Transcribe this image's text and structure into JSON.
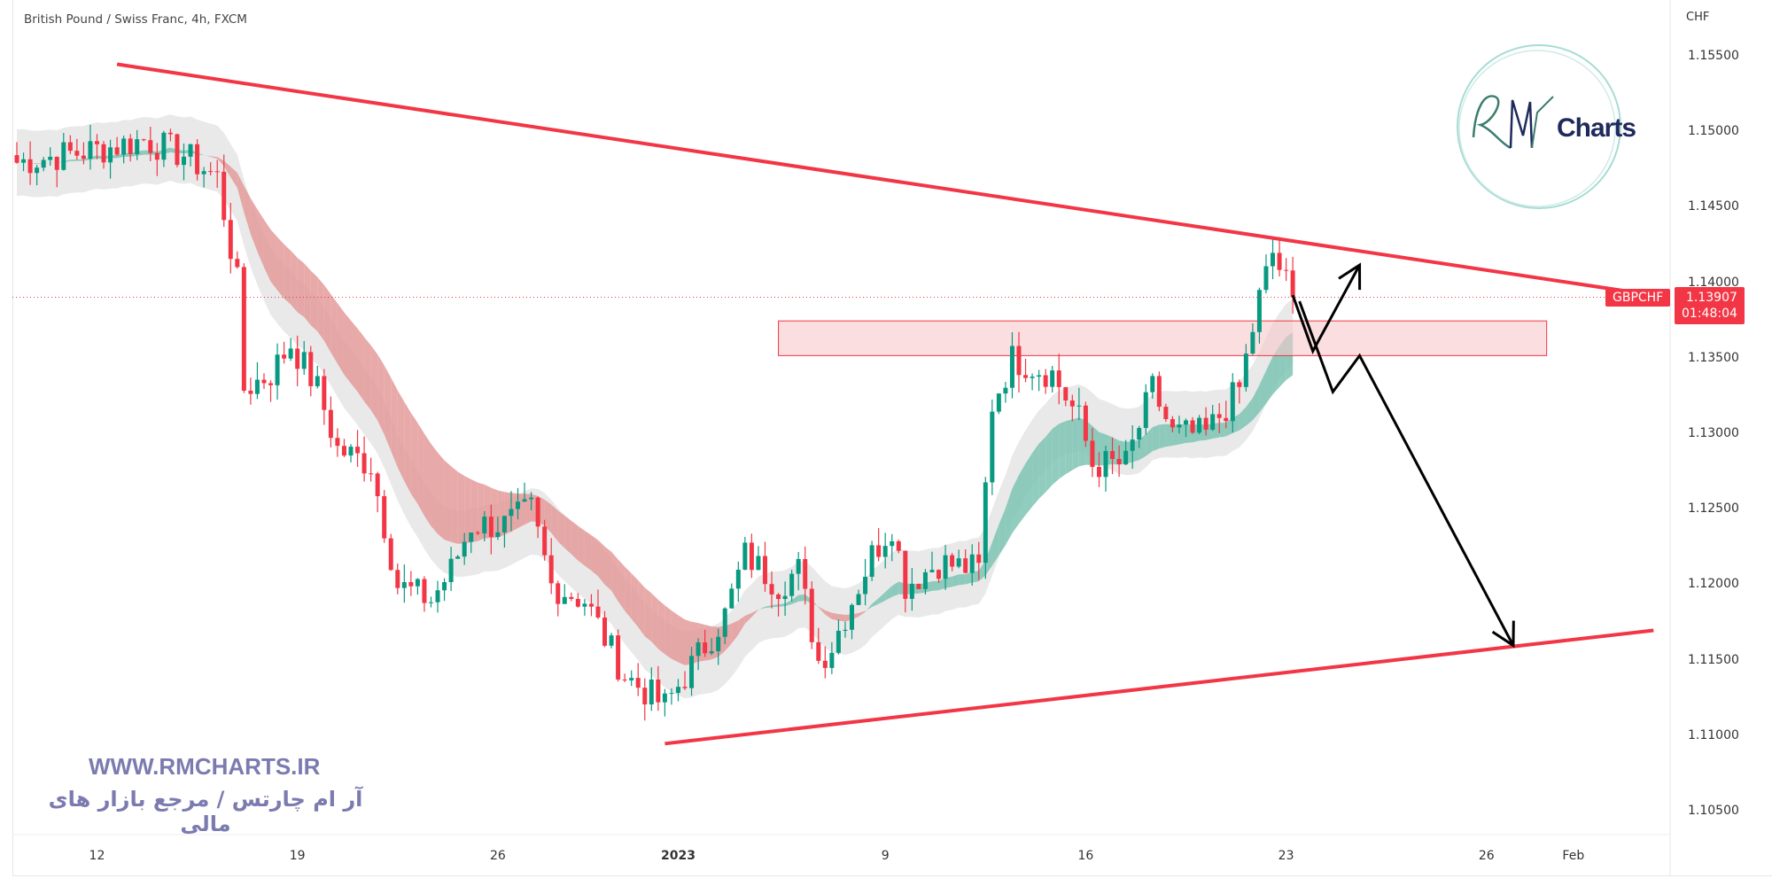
{
  "header": {
    "title": "British Pound / Swiss Franc, 4h, FXCM"
  },
  "price_axis": {
    "currency": "CHF"
  },
  "last_price": {
    "symbol": "GBPCHF",
    "price": "1.13907",
    "countdown": "01:48:04",
    "color": "#f23645"
  },
  "watermark": {
    "url": "WWW.RMCHARTS.IR",
    "tagline": "آر ام چارتس / مرجع بازار های مالی",
    "logo_text": "Charts",
    "logo_mark": "RM"
  },
  "colors": {
    "up": "#089981",
    "down": "#f23645",
    "trendline": "#f23645",
    "zone": "#f8c8cc"
  },
  "chart_data": {
    "type": "candlestick",
    "title": "British Pound / Swiss Franc, 4h, FXCM",
    "ylabel": "CHF",
    "ylim": [
      1.102,
      1.158
    ],
    "y_ticks": [
      "1.15500",
      "1.15000",
      "1.14500",
      "1.14000",
      "1.13500",
      "1.13000",
      "1.12500",
      "1.12000",
      "1.11500",
      "1.11000",
      "1.10500"
    ],
    "x_ticks": [
      {
        "label": "12",
        "bar": 12
      },
      {
        "label": "19",
        "bar": 42
      },
      {
        "label": "26",
        "bar": 72
      },
      {
        "label": "2023",
        "bold": true,
        "bar": 99
      },
      {
        "label": "9",
        "bar": 130
      },
      {
        "label": "16",
        "bar": 160
      },
      {
        "label": "23",
        "bar": 190
      },
      {
        "label": "26",
        "bar": 220
      },
      {
        "label": "Feb",
        "bar": 233
      }
    ],
    "bar_count": 192,
    "close_path": [
      [
        0,
        1.148
      ],
      [
        14,
        1.149
      ],
      [
        19,
        1.1495
      ],
      [
        25,
        1.1485
      ],
      [
        30,
        1.147
      ],
      [
        33,
        1.14
      ],
      [
        34,
        1.133
      ],
      [
        38,
        1.134
      ],
      [
        41,
        1.136
      ],
      [
        45,
        1.133
      ],
      [
        48,
        1.129
      ],
      [
        53,
        1.128
      ],
      [
        57,
        1.12
      ],
      [
        62,
        1.119
      ],
      [
        65,
        1.121
      ],
      [
        68,
        1.124
      ],
      [
        73,
        1.124
      ],
      [
        77,
        1.125
      ],
      [
        80,
        1.12
      ],
      [
        85,
        1.119
      ],
      [
        91,
        1.114
      ],
      [
        97,
        1.112
      ],
      [
        100,
        1.114
      ],
      [
        106,
        1.118
      ],
      [
        109,
        1.122
      ],
      [
        114,
        1.12
      ],
      [
        117,
        1.121
      ],
      [
        120,
        1.115
      ],
      [
        122,
        1.116
      ],
      [
        128,
        1.122
      ],
      [
        131,
        1.124
      ],
      [
        133,
        1.12
      ],
      [
        138,
        1.1215
      ],
      [
        144,
        1.121
      ],
      [
        146,
        1.132
      ],
      [
        149,
        1.135
      ],
      [
        155,
        1.134
      ],
      [
        159,
        1.131
      ],
      [
        161,
        1.128
      ],
      [
        166,
        1.128
      ],
      [
        170,
        1.133
      ],
      [
        173,
        1.13
      ],
      [
        178,
        1.13
      ],
      [
        183,
        1.133
      ],
      [
        186,
        1.139
      ],
      [
        188,
        1.142
      ],
      [
        191,
        1.139
      ]
    ],
    "last_close": 1.13907,
    "trendlines": [
      {
        "name": "upper-resistance",
        "from": [
          15,
          1.1545
        ],
        "to": [
          245,
          1.1392
        ]
      },
      {
        "name": "lower-support",
        "from": [
          97,
          1.1095
        ],
        "to": [
          245,
          1.117
        ]
      }
    ],
    "zone": {
      "from_bar": 114,
      "to_bar": 229,
      "low": 1.1352,
      "high": 1.1375
    },
    "projection_arrows": [
      [
        [
          191,
          1.1392
        ],
        [
          194,
          1.1355
        ],
        [
          201,
          1.1412
        ]
      ],
      [
        [
          192,
          1.1388
        ],
        [
          197,
          1.1328
        ],
        [
          201,
          1.1352
        ],
        [
          224,
          1.116
        ]
      ]
    ]
  }
}
